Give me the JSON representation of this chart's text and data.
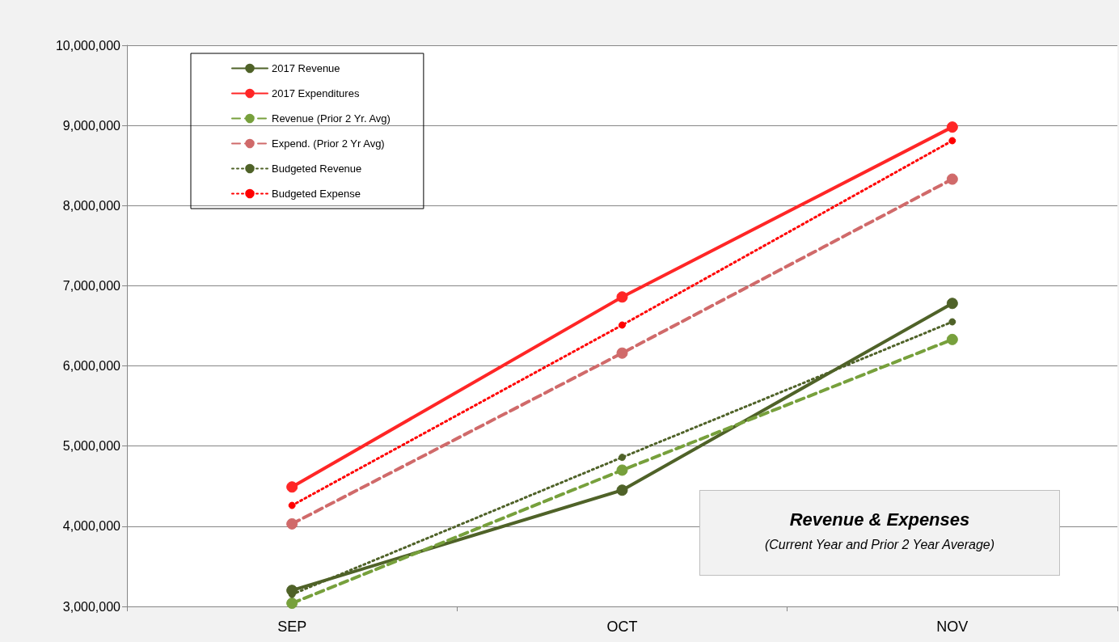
{
  "chart_data": {
    "type": "line",
    "title": "Revenue & Expenses",
    "subtitle": "(Current Year and Prior 2 Year Average)",
    "categories": [
      "SEP",
      "OCT",
      "NOV"
    ],
    "series": [
      {
        "name": "2017 Revenue",
        "color": "#4f6228",
        "line_style": "solid",
        "values": [
          3200000,
          4450000,
          6780000
        ]
      },
      {
        "name": "2017 Expenditures",
        "color": "#ff2626",
        "line_style": "solid",
        "values": [
          4490000,
          6860000,
          8980000
        ]
      },
      {
        "name": "Revenue (Prior 2 Yr. Avg)",
        "color": "#77a03c",
        "line_style": "dashed",
        "values": [
          3040000,
          4700000,
          6330000
        ]
      },
      {
        "name": "Expend. (Prior 2 Yr Avg)",
        "color": "#d06a6a",
        "line_style": "dashed",
        "values": [
          4030000,
          6160000,
          8330000
        ]
      },
      {
        "name": "Budgeted Revenue",
        "color": "#4f6228",
        "line_style": "dotted",
        "values": [
          3150000,
          4860000,
          6550000
        ]
      },
      {
        "name": "Budgeted Expense",
        "color": "#ff0000",
        "line_style": "dotted",
        "values": [
          4260000,
          6510000,
          8810000
        ]
      }
    ],
    "ylim": [
      3000000,
      10000000
    ],
    "yticks": [
      {
        "value": 3000000,
        "label": "3,000,000"
      },
      {
        "value": 4000000,
        "label": "4,000,000"
      },
      {
        "value": 5000000,
        "label": "5,000,000"
      },
      {
        "value": 6000000,
        "label": "6,000,000"
      },
      {
        "value": 7000000,
        "label": "7,000,000"
      },
      {
        "value": 8000000,
        "label": "8,000,000"
      },
      {
        "value": 9000000,
        "label": "9,000,000"
      },
      {
        "value": 10000000,
        "label": "10,000,000"
      }
    ],
    "grid": "y",
    "legend": "top left",
    "marker": "circle"
  }
}
